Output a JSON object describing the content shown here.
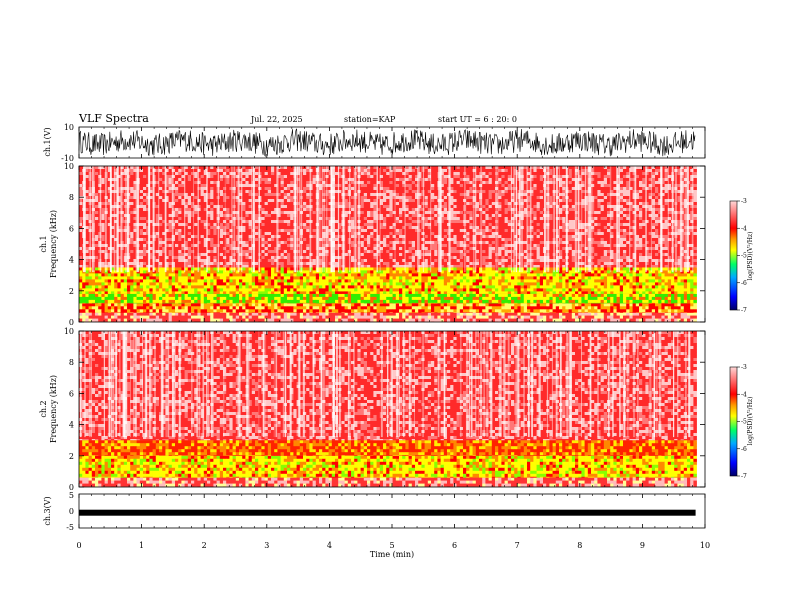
{
  "header": {
    "title": "VLF Spectra",
    "date": "Jul. 22, 2025",
    "station": "station=KAP",
    "start": "start UT =  6 : 20: 0"
  },
  "colors": {
    "spectrogram_low": "#ff0000",
    "spectrogram_mid": "#ffff00",
    "spectrogram_green": "#00dd00",
    "colorbar": [
      "#000066",
      "#0000ff",
      "#00aaff",
      "#00ff66",
      "#ffff00",
      "#ff9900",
      "#ff0000",
      "#ffd0d0"
    ]
  },
  "chart_data": [
    {
      "type": "line",
      "name": "ch1-waveform",
      "ylabel": "ch.1(V)",
      "ylim": [
        -10,
        10
      ],
      "yticks": [
        "10",
        "-10"
      ],
      "description_series": "noisy waveform roughly between -8 and 8 V"
    },
    {
      "type": "heatmap",
      "name": "ch1-spectrogram",
      "ylabel": "ch.1 Frequency (kHz)",
      "ylim": [
        0,
        10
      ],
      "yticks": [
        "0",
        "2",
        "4",
        "6",
        "8",
        "10"
      ],
      "bands": [
        {
          "from": 0.0,
          "to": 0.6,
          "level": "low"
        },
        {
          "from": 0.6,
          "to": 1.2,
          "level": "striped"
        },
        {
          "from": 1.2,
          "to": 1.8,
          "level": "green"
        },
        {
          "from": 1.8,
          "to": 3.5,
          "level": "yellow"
        },
        {
          "from": 3.5,
          "to": 10.0,
          "level": "red"
        }
      ],
      "colorbar": {
        "label": "log(PSD)(V²/Hz)",
        "ticks": [
          "-3",
          "-4",
          "-5",
          "-6",
          "-7"
        ]
      }
    },
    {
      "type": "heatmap",
      "name": "ch2-spectrogram",
      "ylabel": "ch.2 Frequency (kHz)",
      "ylim": [
        0,
        10
      ],
      "yticks": [
        "0",
        "2",
        "4",
        "6",
        "8",
        "10"
      ],
      "bands": [
        {
          "from": 0.0,
          "to": 0.6,
          "level": "low"
        },
        {
          "from": 0.6,
          "to": 2.0,
          "level": "yellow"
        },
        {
          "from": 2.0,
          "to": 3.0,
          "level": "orange"
        },
        {
          "from": 3.0,
          "to": 10.0,
          "level": "red"
        }
      ],
      "colorbar": {
        "label": "log(PSD)(V²/Hz)",
        "ticks": [
          "-3",
          "-4",
          "-5",
          "-6",
          "-7"
        ]
      }
    },
    {
      "type": "line",
      "name": "ch3-waveform",
      "ylabel": "ch.3(V)",
      "ylim": [
        -5,
        5
      ],
      "yticks": [
        "5",
        "0",
        "-5"
      ],
      "level": -0.5
    }
  ],
  "xaxis": {
    "label": "Time (min)",
    "ticks": [
      "0",
      "1",
      "2",
      "3",
      "4",
      "5",
      "6",
      "7",
      "8",
      "9",
      "10"
    ],
    "data_end_min": 9.85
  }
}
